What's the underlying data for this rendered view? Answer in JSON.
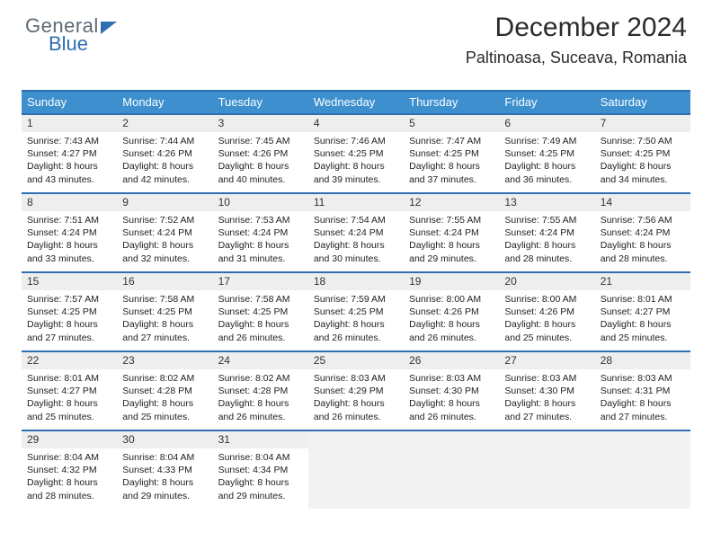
{
  "logo": {
    "line1": "General",
    "line2": "Blue"
  },
  "title": "December 2024",
  "location": "Paltinoasa, Suceava, Romania",
  "header_bg": "#3d8fce",
  "accent": "#2f6fb0",
  "weekdays": [
    "Sunday",
    "Monday",
    "Tuesday",
    "Wednesday",
    "Thursday",
    "Friday",
    "Saturday"
  ],
  "weeks": [
    [
      {
        "n": "1",
        "sr": "Sunrise: 7:43 AM",
        "ss": "Sunset: 4:27 PM",
        "d1": "Daylight: 8 hours",
        "d2": "and 43 minutes."
      },
      {
        "n": "2",
        "sr": "Sunrise: 7:44 AM",
        "ss": "Sunset: 4:26 PM",
        "d1": "Daylight: 8 hours",
        "d2": "and 42 minutes."
      },
      {
        "n": "3",
        "sr": "Sunrise: 7:45 AM",
        "ss": "Sunset: 4:26 PM",
        "d1": "Daylight: 8 hours",
        "d2": "and 40 minutes."
      },
      {
        "n": "4",
        "sr": "Sunrise: 7:46 AM",
        "ss": "Sunset: 4:25 PM",
        "d1": "Daylight: 8 hours",
        "d2": "and 39 minutes."
      },
      {
        "n": "5",
        "sr": "Sunrise: 7:47 AM",
        "ss": "Sunset: 4:25 PM",
        "d1": "Daylight: 8 hours",
        "d2": "and 37 minutes."
      },
      {
        "n": "6",
        "sr": "Sunrise: 7:49 AM",
        "ss": "Sunset: 4:25 PM",
        "d1": "Daylight: 8 hours",
        "d2": "and 36 minutes."
      },
      {
        "n": "7",
        "sr": "Sunrise: 7:50 AM",
        "ss": "Sunset: 4:25 PM",
        "d1": "Daylight: 8 hours",
        "d2": "and 34 minutes."
      }
    ],
    [
      {
        "n": "8",
        "sr": "Sunrise: 7:51 AM",
        "ss": "Sunset: 4:24 PM",
        "d1": "Daylight: 8 hours",
        "d2": "and 33 minutes."
      },
      {
        "n": "9",
        "sr": "Sunrise: 7:52 AM",
        "ss": "Sunset: 4:24 PM",
        "d1": "Daylight: 8 hours",
        "d2": "and 32 minutes."
      },
      {
        "n": "10",
        "sr": "Sunrise: 7:53 AM",
        "ss": "Sunset: 4:24 PM",
        "d1": "Daylight: 8 hours",
        "d2": "and 31 minutes."
      },
      {
        "n": "11",
        "sr": "Sunrise: 7:54 AM",
        "ss": "Sunset: 4:24 PM",
        "d1": "Daylight: 8 hours",
        "d2": "and 30 minutes."
      },
      {
        "n": "12",
        "sr": "Sunrise: 7:55 AM",
        "ss": "Sunset: 4:24 PM",
        "d1": "Daylight: 8 hours",
        "d2": "and 29 minutes."
      },
      {
        "n": "13",
        "sr": "Sunrise: 7:55 AM",
        "ss": "Sunset: 4:24 PM",
        "d1": "Daylight: 8 hours",
        "d2": "and 28 minutes."
      },
      {
        "n": "14",
        "sr": "Sunrise: 7:56 AM",
        "ss": "Sunset: 4:24 PM",
        "d1": "Daylight: 8 hours",
        "d2": "and 28 minutes."
      }
    ],
    [
      {
        "n": "15",
        "sr": "Sunrise: 7:57 AM",
        "ss": "Sunset: 4:25 PM",
        "d1": "Daylight: 8 hours",
        "d2": "and 27 minutes."
      },
      {
        "n": "16",
        "sr": "Sunrise: 7:58 AM",
        "ss": "Sunset: 4:25 PM",
        "d1": "Daylight: 8 hours",
        "d2": "and 27 minutes."
      },
      {
        "n": "17",
        "sr": "Sunrise: 7:58 AM",
        "ss": "Sunset: 4:25 PM",
        "d1": "Daylight: 8 hours",
        "d2": "and 26 minutes."
      },
      {
        "n": "18",
        "sr": "Sunrise: 7:59 AM",
        "ss": "Sunset: 4:25 PM",
        "d1": "Daylight: 8 hours",
        "d2": "and 26 minutes."
      },
      {
        "n": "19",
        "sr": "Sunrise: 8:00 AM",
        "ss": "Sunset: 4:26 PM",
        "d1": "Daylight: 8 hours",
        "d2": "and 26 minutes."
      },
      {
        "n": "20",
        "sr": "Sunrise: 8:00 AM",
        "ss": "Sunset: 4:26 PM",
        "d1": "Daylight: 8 hours",
        "d2": "and 25 minutes."
      },
      {
        "n": "21",
        "sr": "Sunrise: 8:01 AM",
        "ss": "Sunset: 4:27 PM",
        "d1": "Daylight: 8 hours",
        "d2": "and 25 minutes."
      }
    ],
    [
      {
        "n": "22",
        "sr": "Sunrise: 8:01 AM",
        "ss": "Sunset: 4:27 PM",
        "d1": "Daylight: 8 hours",
        "d2": "and 25 minutes."
      },
      {
        "n": "23",
        "sr": "Sunrise: 8:02 AM",
        "ss": "Sunset: 4:28 PM",
        "d1": "Daylight: 8 hours",
        "d2": "and 25 minutes."
      },
      {
        "n": "24",
        "sr": "Sunrise: 8:02 AM",
        "ss": "Sunset: 4:28 PM",
        "d1": "Daylight: 8 hours",
        "d2": "and 26 minutes."
      },
      {
        "n": "25",
        "sr": "Sunrise: 8:03 AM",
        "ss": "Sunset: 4:29 PM",
        "d1": "Daylight: 8 hours",
        "d2": "and 26 minutes."
      },
      {
        "n": "26",
        "sr": "Sunrise: 8:03 AM",
        "ss": "Sunset: 4:30 PM",
        "d1": "Daylight: 8 hours",
        "d2": "and 26 minutes."
      },
      {
        "n": "27",
        "sr": "Sunrise: 8:03 AM",
        "ss": "Sunset: 4:30 PM",
        "d1": "Daylight: 8 hours",
        "d2": "and 27 minutes."
      },
      {
        "n": "28",
        "sr": "Sunrise: 8:03 AM",
        "ss": "Sunset: 4:31 PM",
        "d1": "Daylight: 8 hours",
        "d2": "and 27 minutes."
      }
    ],
    [
      {
        "n": "29",
        "sr": "Sunrise: 8:04 AM",
        "ss": "Sunset: 4:32 PM",
        "d1": "Daylight: 8 hours",
        "d2": "and 28 minutes."
      },
      {
        "n": "30",
        "sr": "Sunrise: 8:04 AM",
        "ss": "Sunset: 4:33 PM",
        "d1": "Daylight: 8 hours",
        "d2": "and 29 minutes."
      },
      {
        "n": "31",
        "sr": "Sunrise: 8:04 AM",
        "ss": "Sunset: 4:34 PM",
        "d1": "Daylight: 8 hours",
        "d2": "and 29 minutes."
      },
      null,
      null,
      null,
      null
    ]
  ]
}
